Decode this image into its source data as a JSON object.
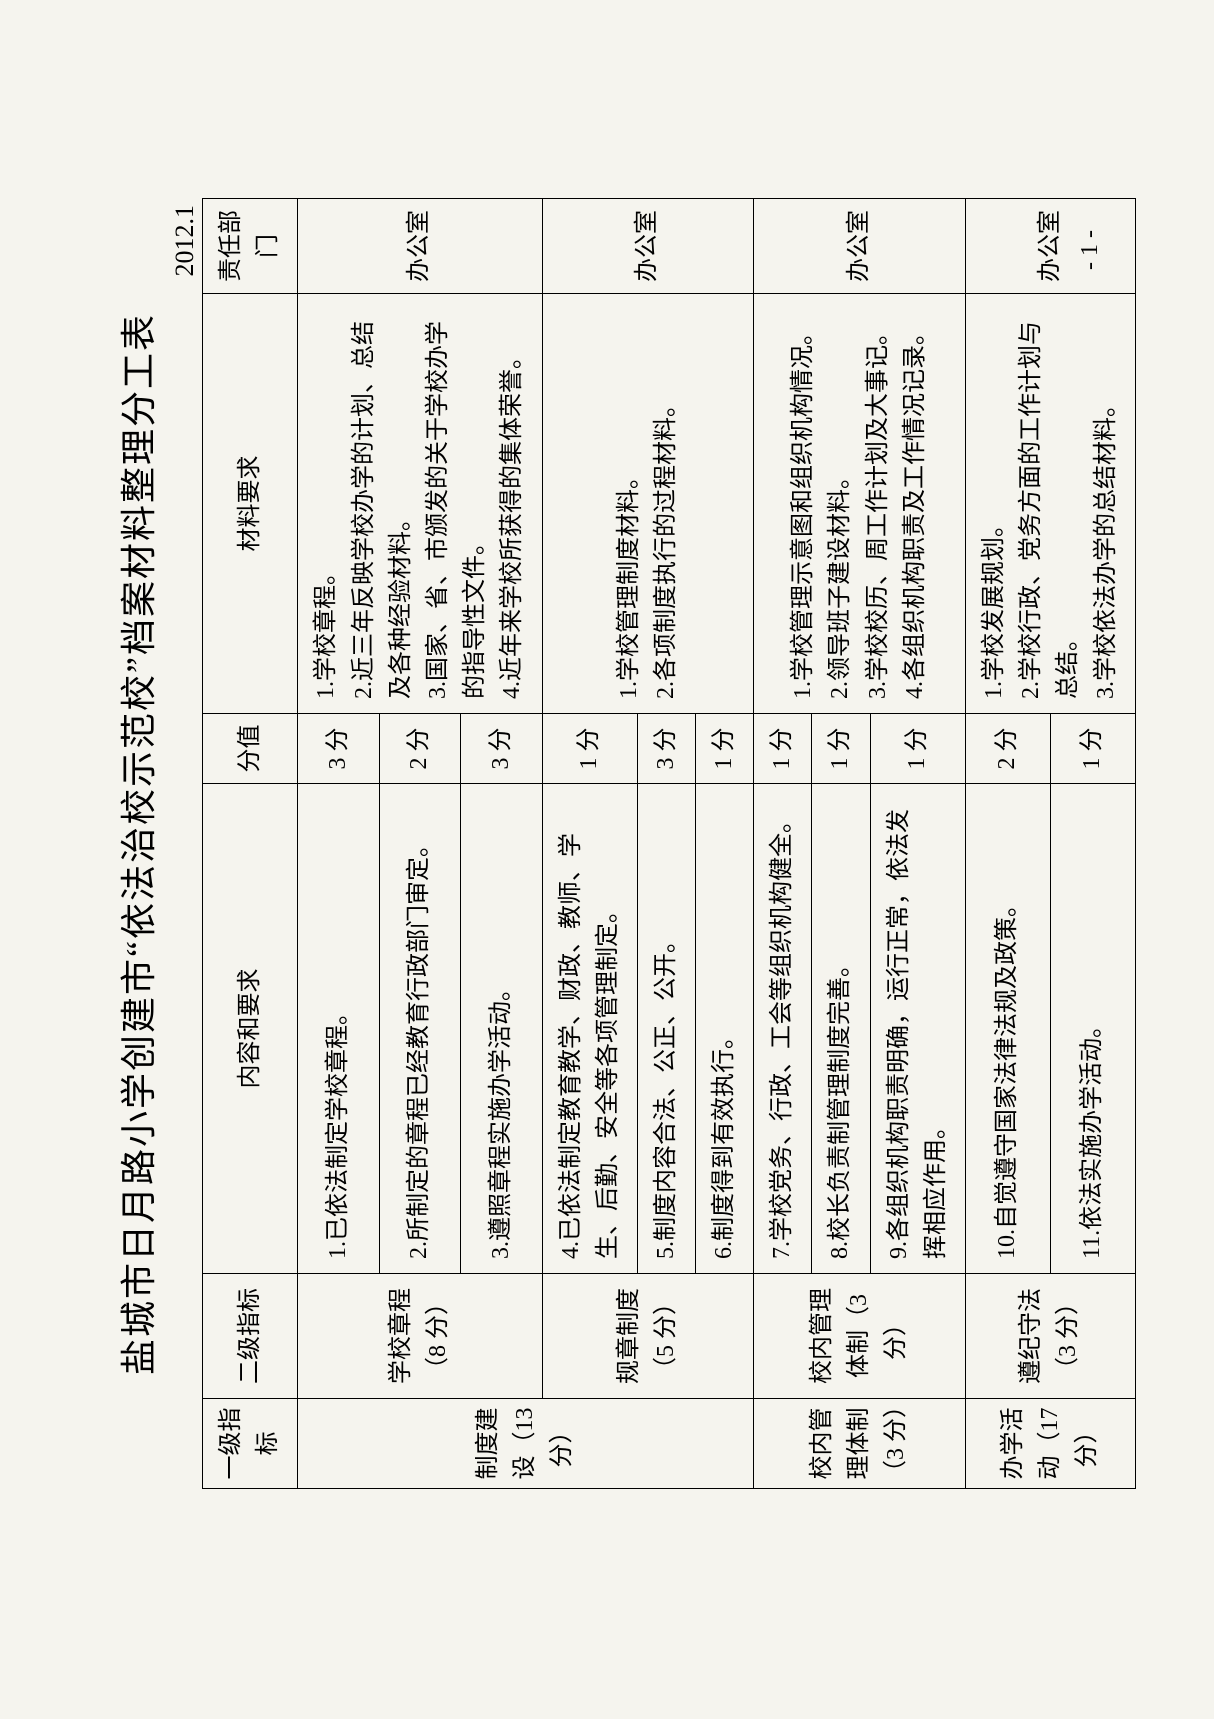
{
  "title": "盐城市日月路小学创建市“依法治校示范校”档案材料整理分工表",
  "date": "2012.1",
  "page_number": "- 1 -",
  "headers": {
    "c1": "一级指标",
    "c2": "二级指标",
    "c3": "内容和要求",
    "c4": "分值",
    "c5": "材料要求",
    "c6": "责任部门"
  },
  "groups": [
    {
      "level1": "制度建设（13 分）",
      "level2_list": [
        {
          "level2": "学校章程（8 分）",
          "dept": "办公室",
          "materials": "1.学校章程。\n2.近三年反映学校办学的计划、总结及各种经验材料。\n3.国家、省、市颁发的关于学校办学的指导性文件。\n4.近年来学校所获得的集体荣誉。",
          "rows": [
            {
              "req": "1.已依法制定学校章程。",
              "score": "3 分"
            },
            {
              "req": "2.所制定的章程已经教育行政部门审定。",
              "score": "2 分"
            },
            {
              "req": "3.遵照章程实施办学活动。",
              "score": "3 分"
            }
          ]
        },
        {
          "level2": "规章制度（5 分）",
          "dept": "办公室",
          "materials": "1.学校管理制度材料。\n2.各项制度执行的过程材料。",
          "rows": [
            {
              "req": "4.已依法制定教育教学、财政、教师、学生、后勤、安全等各项管理制定。",
              "score": "1 分"
            },
            {
              "req": "5.制度内容合法、公正、公开。",
              "score": "3 分"
            },
            {
              "req": "6.制度得到有效执行。",
              "score": "1 分"
            }
          ]
        }
      ]
    },
    {
      "level1": "校内管理体制（3 分）",
      "level2_list": [
        {
          "level2": "校内管理体制（3 分）",
          "dept": "办公室",
          "materials": "1.学校管理示意图和组织机构情况。\n2.领导班子建设材料。\n3.学校校历、周工作计划及大事记。\n4.各组织机构职责及工作情况记录。",
          "rows": [
            {
              "req": "7.学校党务、行政、工会等组织机构健全。",
              "score": "1 分"
            },
            {
              "req": "8.校长负责制管理制度完善。",
              "score": "1 分"
            },
            {
              "req": "9.各组织机构职责明确，运行正常，依法发挥相应作用。",
              "score": "1 分"
            }
          ]
        }
      ]
    },
    {
      "level1": "办学活动（17 分）",
      "level2_list": [
        {
          "level2": "遵纪守法（3 分）",
          "dept": "办公室",
          "materials": "1.学校发展规划。\n2.学校行政、党务方面的工作计划与总结。\n3.学校依法办学的总结材料。",
          "rows": [
            {
              "req": "10.自觉遵守国家法律法规及政策。",
              "score": "2 分"
            },
            {
              "req": "11.依法实施办学活动。",
              "score": "1 分"
            }
          ]
        }
      ]
    }
  ]
}
